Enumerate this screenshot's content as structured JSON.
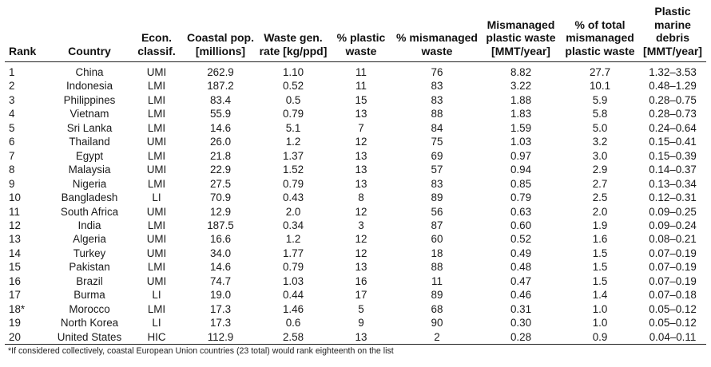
{
  "headers": {
    "rank": "Rank",
    "country": "Country",
    "econ_classif": "Econ. classif.",
    "coastal_pop": "Coastal pop. [millions]",
    "waste_gen_rate": "Waste gen. rate [kg/ppd]",
    "pct_plastic_waste": "% plastic waste",
    "pct_mismanaged_waste": "% mismanaged waste",
    "mismanaged_plastic_waste": "Mismanaged plastic waste [MMT/year]",
    "pct_total_mismanaged": "% of total mismanaged plastic waste",
    "plastic_marine_debris": "Plastic marine debris [MMT/year]"
  },
  "rows": [
    {
      "rank": "1",
      "country": "China",
      "econ": "UMI",
      "pop": "262.9",
      "rate": "1.10",
      "plastic": "11",
      "mismanaged": "76",
      "mpw": "8.82",
      "pct_total": "27.7",
      "debris": "1.32–3.53"
    },
    {
      "rank": "2",
      "country": "Indonesia",
      "econ": "LMI",
      "pop": "187.2",
      "rate": "0.52",
      "plastic": "11",
      "mismanaged": "83",
      "mpw": "3.22",
      "pct_total": "10.1",
      "debris": "0.48–1.29"
    },
    {
      "rank": "3",
      "country": "Philippines",
      "econ": "LMI",
      "pop": "83.4",
      "rate": "0.5",
      "plastic": "15",
      "mismanaged": "83",
      "mpw": "1.88",
      "pct_total": "5.9",
      "debris": "0.28–0.75"
    },
    {
      "rank": "4",
      "country": "Vietnam",
      "econ": "LMI",
      "pop": "55.9",
      "rate": "0.79",
      "plastic": "13",
      "mismanaged": "88",
      "mpw": "1.83",
      "pct_total": "5.8",
      "debris": "0.28–0.73"
    },
    {
      "rank": "5",
      "country": "Sri Lanka",
      "econ": "LMI",
      "pop": "14.6",
      "rate": "5.1",
      "plastic": "7",
      "mismanaged": "84",
      "mpw": "1.59",
      "pct_total": "5.0",
      "debris": "0.24–0.64"
    },
    {
      "rank": "6",
      "country": "Thailand",
      "econ": "UMI",
      "pop": "26.0",
      "rate": "1.2",
      "plastic": "12",
      "mismanaged": "75",
      "mpw": "1.03",
      "pct_total": "3.2",
      "debris": "0.15–0.41"
    },
    {
      "rank": "7",
      "country": "Egypt",
      "econ": "LMI",
      "pop": "21.8",
      "rate": "1.37",
      "plastic": "13",
      "mismanaged": "69",
      "mpw": "0.97",
      "pct_total": "3.0",
      "debris": "0.15–0.39"
    },
    {
      "rank": "8",
      "country": "Malaysia",
      "econ": "UMI",
      "pop": "22.9",
      "rate": "1.52",
      "plastic": "13",
      "mismanaged": "57",
      "mpw": "0.94",
      "pct_total": "2.9",
      "debris": "0.14–0.37"
    },
    {
      "rank": "9",
      "country": "Nigeria",
      "econ": "LMI",
      "pop": "27.5",
      "rate": "0.79",
      "plastic": "13",
      "mismanaged": "83",
      "mpw": "0.85",
      "pct_total": "2.7",
      "debris": "0.13–0.34"
    },
    {
      "rank": "10",
      "country": "Bangladesh",
      "econ": "LI",
      "pop": "70.9",
      "rate": "0.43",
      "plastic": "8",
      "mismanaged": "89",
      "mpw": "0.79",
      "pct_total": "2.5",
      "debris": "0.12–0.31"
    },
    {
      "rank": "11",
      "country": "South Africa",
      "econ": "UMI",
      "pop": "12.9",
      "rate": "2.0",
      "plastic": "12",
      "mismanaged": "56",
      "mpw": "0.63",
      "pct_total": "2.0",
      "debris": "0.09–0.25"
    },
    {
      "rank": "12",
      "country": "India",
      "econ": "LMI",
      "pop": "187.5",
      "rate": "0.34",
      "plastic": "3",
      "mismanaged": "87",
      "mpw": "0.60",
      "pct_total": "1.9",
      "debris": "0.09–0.24"
    },
    {
      "rank": "13",
      "country": "Algeria",
      "econ": "UMI",
      "pop": "16.6",
      "rate": "1.2",
      "plastic": "12",
      "mismanaged": "60",
      "mpw": "0.52",
      "pct_total": "1.6",
      "debris": "0.08–0.21"
    },
    {
      "rank": "14",
      "country": "Turkey",
      "econ": "UMI",
      "pop": "34.0",
      "rate": "1.77",
      "plastic": "12",
      "mismanaged": "18",
      "mpw": "0.49",
      "pct_total": "1.5",
      "debris": "0.07–0.19"
    },
    {
      "rank": "15",
      "country": "Pakistan",
      "econ": "LMI",
      "pop": "14.6",
      "rate": "0.79",
      "plastic": "13",
      "mismanaged": "88",
      "mpw": "0.48",
      "pct_total": "1.5",
      "debris": "0.07–0.19"
    },
    {
      "rank": "16",
      "country": "Brazil",
      "econ": "UMI",
      "pop": "74.7",
      "rate": "1.03",
      "plastic": "16",
      "mismanaged": "11",
      "mpw": "0.47",
      "pct_total": "1.5",
      "debris": "0.07–0.19"
    },
    {
      "rank": "17",
      "country": "Burma",
      "econ": "LI",
      "pop": "19.0",
      "rate": "0.44",
      "plastic": "17",
      "mismanaged": "89",
      "mpw": "0.46",
      "pct_total": "1.4",
      "debris": "0.07–0.18"
    },
    {
      "rank": "18*",
      "country": "Morocco",
      "econ": "LMI",
      "pop": "17.3",
      "rate": "1.46",
      "plastic": "5",
      "mismanaged": "68",
      "mpw": "0.31",
      "pct_total": "1.0",
      "debris": "0.05–0.12"
    },
    {
      "rank": "19",
      "country": "North Korea",
      "econ": "LI",
      "pop": "17.3",
      "rate": "0.6",
      "plastic": "9",
      "mismanaged": "90",
      "mpw": "0.30",
      "pct_total": "1.0",
      "debris": "0.05–0.12"
    },
    {
      "rank": "20",
      "country": "United States",
      "econ": "HIC",
      "pop": "112.9",
      "rate": "2.58",
      "plastic": "13",
      "mismanaged": "2",
      "mpw": "0.28",
      "pct_total": "0.9",
      "debris": "0.04–0.11"
    }
  ],
  "footnote": "*If considered collectively, coastal European Union countries (23 total) would rank eighteenth on the list"
}
